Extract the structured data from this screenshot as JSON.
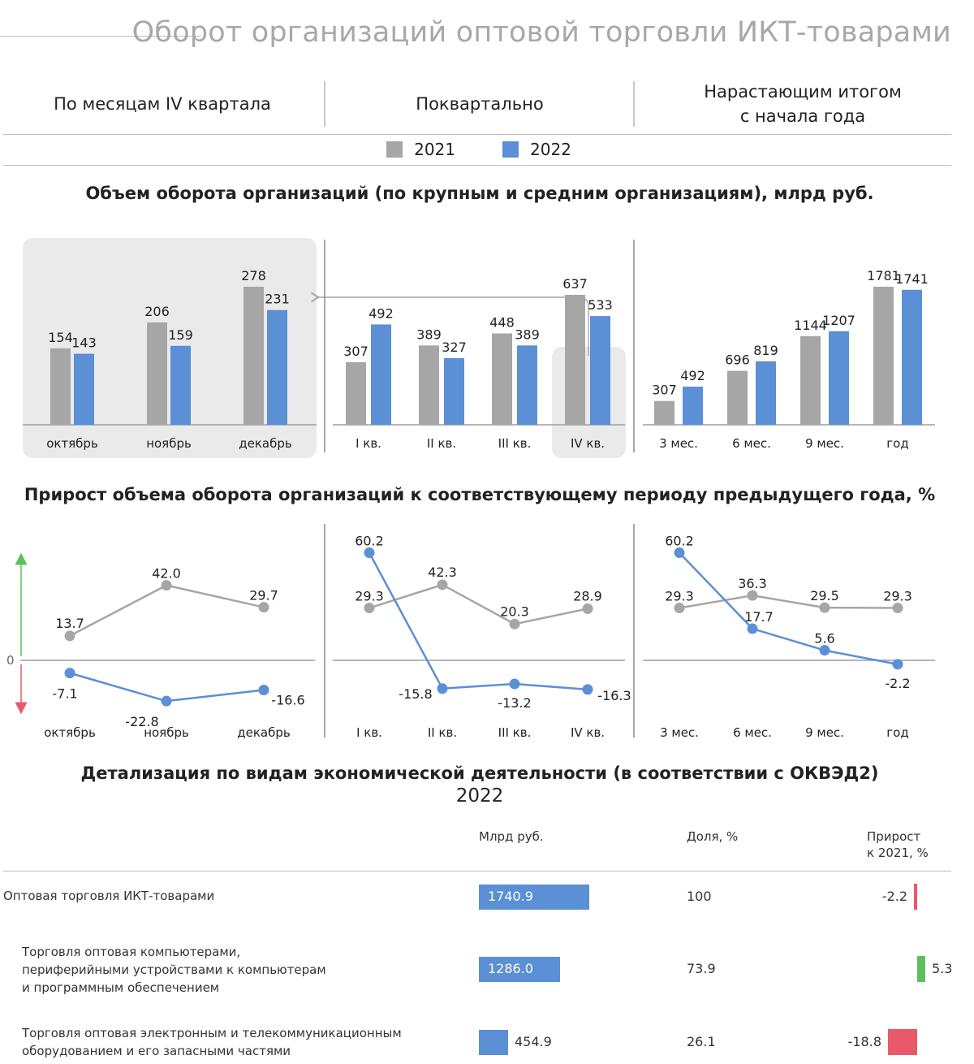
{
  "page": {
    "title": "Оборот организаций оптовой торговли ИКТ-товарами"
  },
  "tabs": [
    {
      "label": "По месяцам IV квартала"
    },
    {
      "label": "Поквартально"
    },
    {
      "label": "Нарастающим итогом\nс начала года"
    }
  ],
  "legend": [
    {
      "label": "2021",
      "color": "#a6a6a6"
    },
    {
      "label": "2022",
      "color": "#5b8fd6"
    }
  ],
  "colors": {
    "y2021": "#a6a6a6",
    "y2022": "#5b8fd6",
    "negative": "#e85a6a",
    "positive": "#5cbf5c",
    "highlight_bg": "#eaeaea"
  },
  "sections": {
    "volume_title": "Объем оборота организаций (по крупным и средним организациям), млрд руб.",
    "growth_title": "Прирост объема оборота организаций к соответствующему периоду предыдущего года, %",
    "detail_title": "Детализация по видам экономической деятельности (в соответствии с ОКВЭД2)",
    "detail_year": "2022"
  },
  "chart_data": [
    {
      "type": "bar",
      "panel": "По месяцам IV квартала",
      "categories": [
        "октябрь",
        "ноябрь",
        "декабрь"
      ],
      "series": [
        {
          "name": "2021",
          "values": [
            154,
            206,
            278
          ]
        },
        {
          "name": "2022",
          "values": [
            143,
            159,
            231
          ]
        }
      ]
    },
    {
      "type": "bar",
      "panel": "Поквартально",
      "categories": [
        "I кв.",
        "II кв.",
        "III кв.",
        "IV кв."
      ],
      "series": [
        {
          "name": "2021",
          "values": [
            307,
            389,
            448,
            637
          ]
        },
        {
          "name": "2022",
          "values": [
            492,
            327,
            389,
            533
          ]
        }
      ]
    },
    {
      "type": "bar",
      "panel": "Нарастающим итогом с начала года",
      "categories": [
        "3 мес.",
        "6 мес.",
        "9 мес.",
        "год"
      ],
      "series": [
        {
          "name": "2021",
          "values": [
            307,
            696,
            1144,
            1781
          ]
        },
        {
          "name": "2022",
          "values": [
            492,
            819,
            1207,
            1741
          ]
        }
      ]
    },
    {
      "type": "line",
      "panel": "По месяцам IV квартала",
      "zero_label": "0",
      "categories": [
        "октябрь",
        "ноябрь",
        "декабрь"
      ],
      "series": [
        {
          "name": "2021",
          "values": [
            13.7,
            42.0,
            29.7
          ]
        },
        {
          "name": "2022",
          "values": [
            -7.1,
            -22.8,
            -16.6
          ]
        }
      ]
    },
    {
      "type": "line",
      "panel": "Поквартально",
      "categories": [
        "I кв.",
        "II кв.",
        "III кв.",
        "IV кв."
      ],
      "series": [
        {
          "name": "2021",
          "values": [
            29.3,
            42.3,
            20.3,
            28.9
          ]
        },
        {
          "name": "2022",
          "values": [
            60.2,
            -15.8,
            -13.2,
            -16.3
          ]
        }
      ]
    },
    {
      "type": "line",
      "panel": "Нарастающим итогом с начала года",
      "categories": [
        "3 мес.",
        "6 мес.",
        "9 мес.",
        "год"
      ],
      "series": [
        {
          "name": "2021",
          "values": [
            29.3,
            36.3,
            29.5,
            29.3
          ]
        },
        {
          "name": "2022",
          "values": [
            60.2,
            17.7,
            5.6,
            -2.2
          ]
        }
      ]
    }
  ],
  "table": {
    "headers": {
      "label": "",
      "value": "Млрд руб.",
      "share": "Доля, %",
      "growth": "Прирост\nк 2021, %"
    },
    "rows": [
      {
        "label": "Оптовая торговля ИКТ-товарами",
        "value": 1740.9,
        "value_text": "1740.9",
        "share": "100",
        "growth": -2.2,
        "growth_text": "-2.2"
      },
      {
        "label": "Торговля оптовая компьютерами,\nпериферийными устройствами к компьютерам\nи программным обеспечением",
        "value": 1286.0,
        "value_text": "1286.0",
        "share": "73.9",
        "growth": 5.3,
        "growth_text": "5.3"
      },
      {
        "label": "Торговля оптовая электронным и телекоммуникационным\nоборудованием и его запасными частями",
        "value": 454.9,
        "value_text": "454.9",
        "share": "26.1",
        "growth": -18.8,
        "growth_text": "-18.8"
      }
    ]
  }
}
